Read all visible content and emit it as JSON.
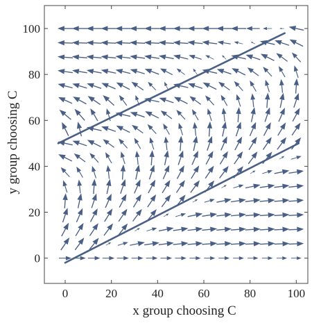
{
  "chart_data": {
    "type": "vector-field",
    "xlabel": "x group choosing C",
    "ylabel": "y group choosing C",
    "xlim": [
      -9,
      105
    ],
    "ylim": [
      -11,
      110
    ],
    "xticks": [
      0,
      20,
      40,
      60,
      80,
      100
    ],
    "yticks": [
      0,
      20,
      40,
      60,
      80,
      100
    ],
    "grid": false,
    "field": {
      "x_range": [
        0,
        100
      ],
      "y_range": [
        0,
        100
      ],
      "step": 6.25,
      "description": "arrows point toward increasing y for points below the upper line; arrows point toward decreasing x above the upper line and near y=100; arrows point right at y≈0"
    },
    "lines": [
      {
        "x": [
          -3,
          95
        ],
        "y": [
          50,
          98
        ]
      },
      {
        "x": [
          0,
          101
        ],
        "y": [
          -2,
          50
        ]
      }
    ],
    "colors": {
      "arrows": "#4a5f85",
      "lines": "#4a5f85",
      "frame": "#444444"
    }
  }
}
